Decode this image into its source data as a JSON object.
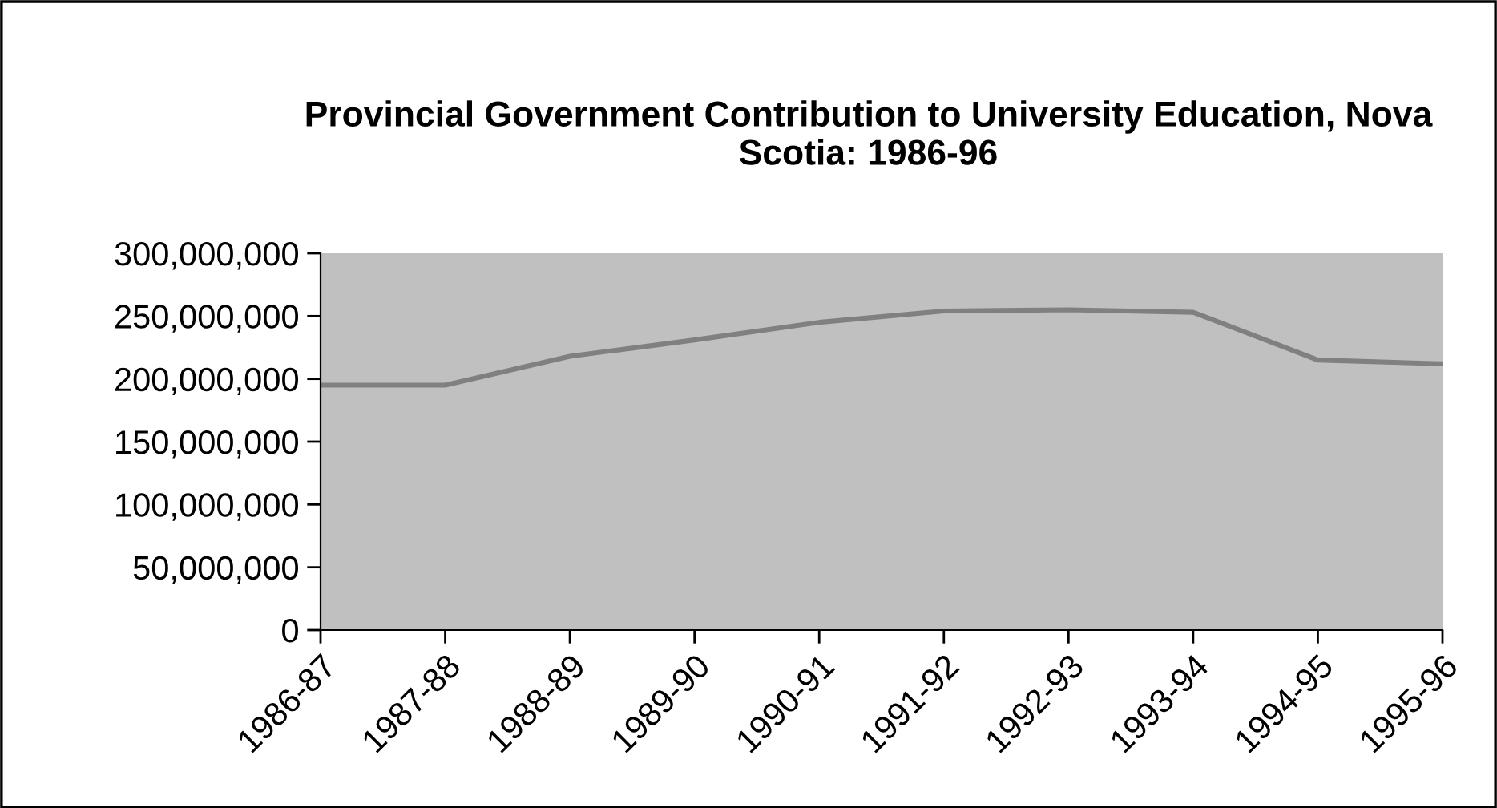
{
  "chart_data": {
    "type": "line",
    "title": "Provincial Government Contribution to University Education, Nova Scotia: 1986-96",
    "categories": [
      "1986-87",
      "1987-88",
      "1988-89",
      "1989-90",
      "1990-91",
      "1991-92",
      "1992-93",
      "1993-94",
      "1994-95",
      "1995-96"
    ],
    "series": [
      {
        "color": "#808080",
        "values": [
          195000000,
          195000000,
          218000000,
          231000000,
          245000000,
          254000000,
          255000000,
          253000000,
          215000000,
          212000000
        ]
      }
    ],
    "ylim": [
      0,
      300000000
    ],
    "yticks": [
      {
        "value": 0,
        "label": "0"
      },
      {
        "value": 50000000,
        "label": "50,000,000"
      },
      {
        "value": 100000000,
        "label": "100,000,000"
      },
      {
        "value": 150000000,
        "label": "150,000,000"
      },
      {
        "value": 200000000,
        "label": "200,000,000"
      },
      {
        "value": 250000000,
        "label": "250,000,000"
      },
      {
        "value": 300000000,
        "label": "300,000,000"
      }
    ],
    "grid": false,
    "legend": false,
    "marker": "none",
    "line_style": "solid"
  }
}
